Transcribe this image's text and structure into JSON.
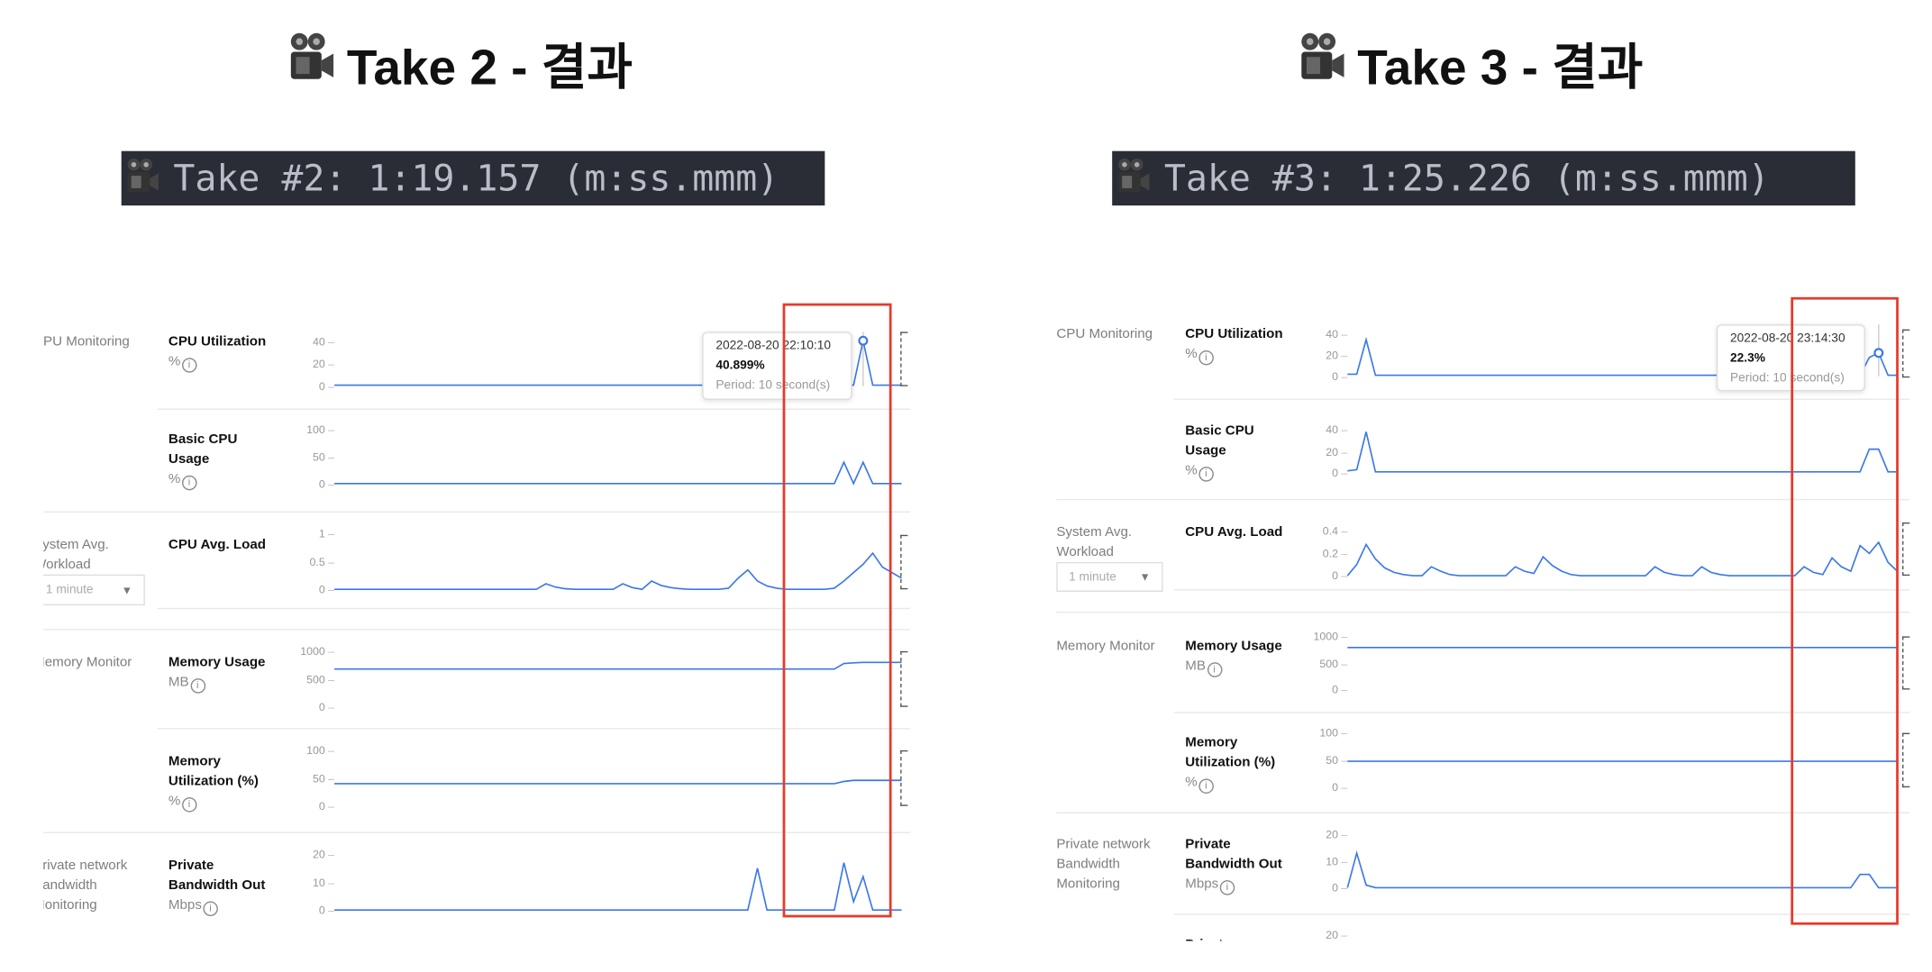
{
  "panels": [
    {
      "title": "Take 2 - 결과",
      "banner": "Take #2: 1:19.157 (m:ss.mmm)",
      "groups": [
        "CPU Monitoring",
        "System Avg. Workload",
        "Memory Monitor",
        "Private network Bandwidth Monitoring"
      ],
      "dropdown": "1 minute",
      "tooltip": {
        "time": "2022-08-20 22:10:10",
        "value": "40.899%",
        "period": "Period: 10 second(s)"
      }
    },
    {
      "title": "Take 3 - 결과",
      "banner": "Take #3: 1:25.226 (m:ss.mmm)",
      "groups": [
        "CPU Monitoring",
        "System Avg. Workload",
        "Memory Monitor",
        "Private network Bandwidth Monitoring"
      ],
      "dropdown": "1 minute",
      "tooltip": {
        "time": "2022-08-20 23:14:30",
        "value": "22.3%",
        "period": "Period: 10 second(s)"
      }
    }
  ],
  "colors": {
    "line": "#3b78e7",
    "highlight": "#e8392b",
    "banner_bg": "#2a2d35"
  },
  "icons": {
    "title": "movie-camera-icon",
    "unit_info": "info-circle-icon",
    "dropdown": "caret-down-icon"
  },
  "chart_data": [
    {
      "type": "line",
      "title": "CPU Utilization",
      "unit": "%",
      "yticks": [
        "40",
        "20",
        "0"
      ],
      "ylim": [
        0,
        40
      ],
      "values": [
        1,
        1,
        1,
        1,
        1,
        1,
        1,
        1,
        1,
        1,
        1,
        1,
        1,
        1,
        1,
        1,
        1,
        1,
        1,
        1,
        1,
        1,
        1,
        1,
        1,
        1,
        1,
        1,
        1,
        1,
        1,
        1,
        1,
        1,
        1,
        1,
        1,
        1,
        1,
        1,
        1,
        1,
        1,
        1,
        1,
        1,
        1,
        1,
        1,
        1,
        1,
        1,
        1,
        1,
        1,
        40.9,
        1,
        1,
        1,
        1
      ]
    },
    {
      "type": "line",
      "title": "Basic CPU Usage",
      "unit": "%",
      "yticks": [
        "100",
        "50",
        "0"
      ],
      "ylim": [
        0,
        100
      ],
      "values": [
        1,
        1,
        1,
        1,
        1,
        1,
        1,
        1,
        1,
        1,
        1,
        1,
        1,
        1,
        1,
        1,
        1,
        1,
        1,
        1,
        1,
        1,
        1,
        1,
        1,
        1,
        1,
        1,
        1,
        1,
        1,
        1,
        1,
        1,
        1,
        1,
        1,
        1,
        1,
        1,
        1,
        1,
        1,
        1,
        1,
        1,
        1,
        1,
        1,
        1,
        1,
        1,
        1,
        40,
        1,
        40,
        1,
        1,
        1,
        1
      ]
    },
    {
      "type": "line",
      "title": "CPU Avg. Load",
      "unit": "",
      "yticks": [
        "1",
        "0.5",
        "0"
      ],
      "ylim": [
        0,
        1
      ],
      "values": [
        0,
        0,
        0,
        0,
        0,
        0,
        0,
        0,
        0,
        0,
        0,
        0,
        0,
        0,
        0,
        0,
        0,
        0,
        0,
        0,
        0,
        0,
        0.1,
        0.04,
        0.01,
        0,
        0,
        0,
        0,
        0,
        0.1,
        0.03,
        0,
        0.15,
        0.07,
        0.03,
        0.01,
        0,
        0,
        0,
        0,
        0.02,
        0.2,
        0.35,
        0.15,
        0.06,
        0.02,
        0,
        0,
        0,
        0,
        0,
        0.02,
        0.15,
        0.3,
        0.45,
        0.65,
        0.4,
        0.3,
        0.2
      ]
    },
    {
      "type": "line",
      "title": "Memory Usage",
      "unit": "MB",
      "yticks": [
        "1000",
        "500",
        "0"
      ],
      "ylim": [
        0,
        1000
      ],
      "values": [
        680,
        680,
        680,
        680,
        680,
        680,
        680,
        680,
        680,
        680,
        680,
        680,
        680,
        680,
        680,
        680,
        680,
        680,
        680,
        680,
        680,
        680,
        680,
        680,
        680,
        680,
        680,
        680,
        680,
        680,
        680,
        680,
        680,
        680,
        680,
        680,
        680,
        680,
        680,
        680,
        680,
        680,
        680,
        680,
        680,
        680,
        680,
        680,
        680,
        680,
        680,
        680,
        680,
        780,
        790,
        800,
        800,
        800,
        800,
        800
      ]
    },
    {
      "type": "line",
      "title": "Memory Utilization (%)",
      "unit": "%",
      "yticks": [
        "100",
        "50",
        "0"
      ],
      "ylim": [
        0,
        100
      ],
      "values": [
        40,
        40,
        40,
        40,
        40,
        40,
        40,
        40,
        40,
        40,
        40,
        40,
        40,
        40,
        40,
        40,
        40,
        40,
        40,
        40,
        40,
        40,
        40,
        40,
        40,
        40,
        40,
        40,
        40,
        40,
        40,
        40,
        40,
        40,
        40,
        40,
        40,
        40,
        40,
        40,
        40,
        40,
        40,
        40,
        40,
        40,
        40,
        40,
        40,
        40,
        40,
        40,
        40,
        44,
        46,
        46,
        46,
        46,
        46,
        46
      ]
    },
    {
      "type": "line",
      "title": "Private Bandwidth Out",
      "unit": "Mbps",
      "yticks": [
        "20",
        "10",
        "0"
      ],
      "ylim": [
        0,
        20
      ],
      "values": [
        0,
        0,
        0,
        0,
        0,
        0,
        0,
        0,
        0,
        0,
        0,
        0,
        0,
        0,
        0,
        0,
        0,
        0,
        0,
        0,
        0,
        0,
        0,
        0,
        0,
        0,
        0,
        0,
        0,
        0,
        0,
        0,
        0,
        0,
        0,
        0,
        0,
        0,
        0,
        0,
        0,
        0,
        0,
        0,
        15,
        0,
        0,
        0,
        0,
        0,
        0,
        0,
        0,
        17,
        3,
        12,
        0,
        0,
        0,
        0
      ]
    },
    {
      "type": "line",
      "title": "CPU Utilization",
      "unit": "%",
      "yticks": [
        "40",
        "20",
        "0"
      ],
      "ylim": [
        0,
        40
      ],
      "values": [
        2,
        2,
        35,
        1,
        1,
        1,
        1,
        1,
        1,
        1,
        1,
        1,
        1,
        1,
        1,
        1,
        1,
        1,
        1,
        1,
        1,
        1,
        1,
        1,
        1,
        1,
        1,
        1,
        1,
        1,
        1,
        1,
        1,
        1,
        1,
        1,
        1,
        1,
        1,
        1,
        1,
        1,
        1,
        1,
        1,
        1,
        1,
        1,
        1,
        1,
        1,
        1,
        1,
        1,
        1,
        1,
        18,
        22.3,
        1,
        1
      ]
    },
    {
      "type": "line",
      "title": "Basic CPU Usage",
      "unit": "%",
      "yticks": [
        "40",
        "20",
        "0"
      ],
      "ylim": [
        0,
        40
      ],
      "values": [
        2,
        3,
        38,
        1,
        1,
        1,
        1,
        1,
        1,
        1,
        1,
        1,
        1,
        1,
        1,
        1,
        1,
        1,
        1,
        1,
        1,
        1,
        1,
        1,
        1,
        1,
        1,
        1,
        1,
        1,
        1,
        1,
        1,
        1,
        1,
        1,
        1,
        1,
        1,
        1,
        1,
        1,
        1,
        1,
        1,
        1,
        1,
        1,
        1,
        1,
        1,
        1,
        1,
        1,
        1,
        1,
        22,
        22,
        1,
        1
      ]
    },
    {
      "type": "line",
      "title": "CPU Avg. Load",
      "unit": "",
      "yticks": [
        "0.4",
        "0.2",
        "0"
      ],
      "ylim": [
        0,
        0.4
      ],
      "values": [
        0,
        0.1,
        0.28,
        0.15,
        0.07,
        0.03,
        0.01,
        0,
        0,
        0.08,
        0.04,
        0.01,
        0,
        0,
        0,
        0,
        0,
        0,
        0.08,
        0.04,
        0.02,
        0.17,
        0.09,
        0.04,
        0.01,
        0,
        0,
        0,
        0,
        0,
        0,
        0,
        0,
        0.08,
        0.03,
        0.01,
        0,
        0,
        0.08,
        0.03,
        0.01,
        0,
        0,
        0,
        0,
        0,
        0,
        0,
        0,
        0.08,
        0.03,
        0.01,
        0.16,
        0.08,
        0.04,
        0.27,
        0.2,
        0.3,
        0.12,
        0.04
      ]
    },
    {
      "type": "line",
      "title": "Memory Usage",
      "unit": "MB",
      "yticks": [
        "1000",
        "500",
        "0"
      ],
      "ylim": [
        0,
        1000
      ],
      "values": [
        790,
        790,
        790,
        790,
        790,
        790,
        790,
        790,
        790,
        790,
        790,
        790,
        790,
        790,
        790,
        790,
        790,
        790,
        790,
        790,
        790,
        790,
        790,
        790,
        790,
        790,
        790,
        790,
        790,
        790,
        790,
        790,
        790,
        790,
        790,
        790,
        790,
        790,
        790,
        790,
        790,
        790,
        790,
        790,
        790,
        790,
        790,
        790,
        790,
        790,
        790,
        790,
        790,
        790,
        790,
        790,
        790,
        790,
        790,
        790
      ]
    },
    {
      "type": "line",
      "title": "Memory Utilization (%)",
      "unit": "%",
      "yticks": [
        "100",
        "50",
        "0"
      ],
      "ylim": [
        0,
        100
      ],
      "values": [
        48,
        48,
        48,
        48,
        48,
        48,
        48,
        48,
        48,
        48,
        48,
        48,
        48,
        48,
        48,
        48,
        48,
        48,
        48,
        48,
        48,
        48,
        48,
        48,
        48,
        48,
        48,
        48,
        48,
        48,
        48,
        48,
        48,
        48,
        48,
        48,
        48,
        48,
        48,
        48,
        48,
        48,
        48,
        48,
        48,
        48,
        48,
        48,
        48,
        48,
        48,
        48,
        48,
        48,
        48,
        48,
        48,
        48,
        48,
        48
      ]
    },
    {
      "type": "line",
      "title": "Private Bandwidth Out",
      "unit": "Mbps",
      "yticks": [
        "20",
        "10",
        "0"
      ],
      "ylim": [
        0,
        20
      ],
      "values": [
        0,
        13,
        1,
        0,
        0,
        0,
        0,
        0,
        0,
        0,
        0,
        0,
        0,
        0,
        0,
        0,
        0,
        0,
        0,
        0,
        0,
        0,
        0,
        0,
        0,
        0,
        0,
        0,
        0,
        0,
        0,
        0,
        0,
        0,
        0,
        0,
        0,
        0,
        0,
        0,
        0,
        0,
        0,
        0,
        0,
        0,
        0,
        0,
        0,
        0,
        0,
        0,
        0,
        0,
        0,
        5,
        5,
        0,
        0,
        0
      ]
    },
    {
      "type": "line",
      "title": "Private",
      "unit": "",
      "yticks": [
        "20"
      ],
      "ylim": [
        0,
        20
      ],
      "values": []
    }
  ]
}
